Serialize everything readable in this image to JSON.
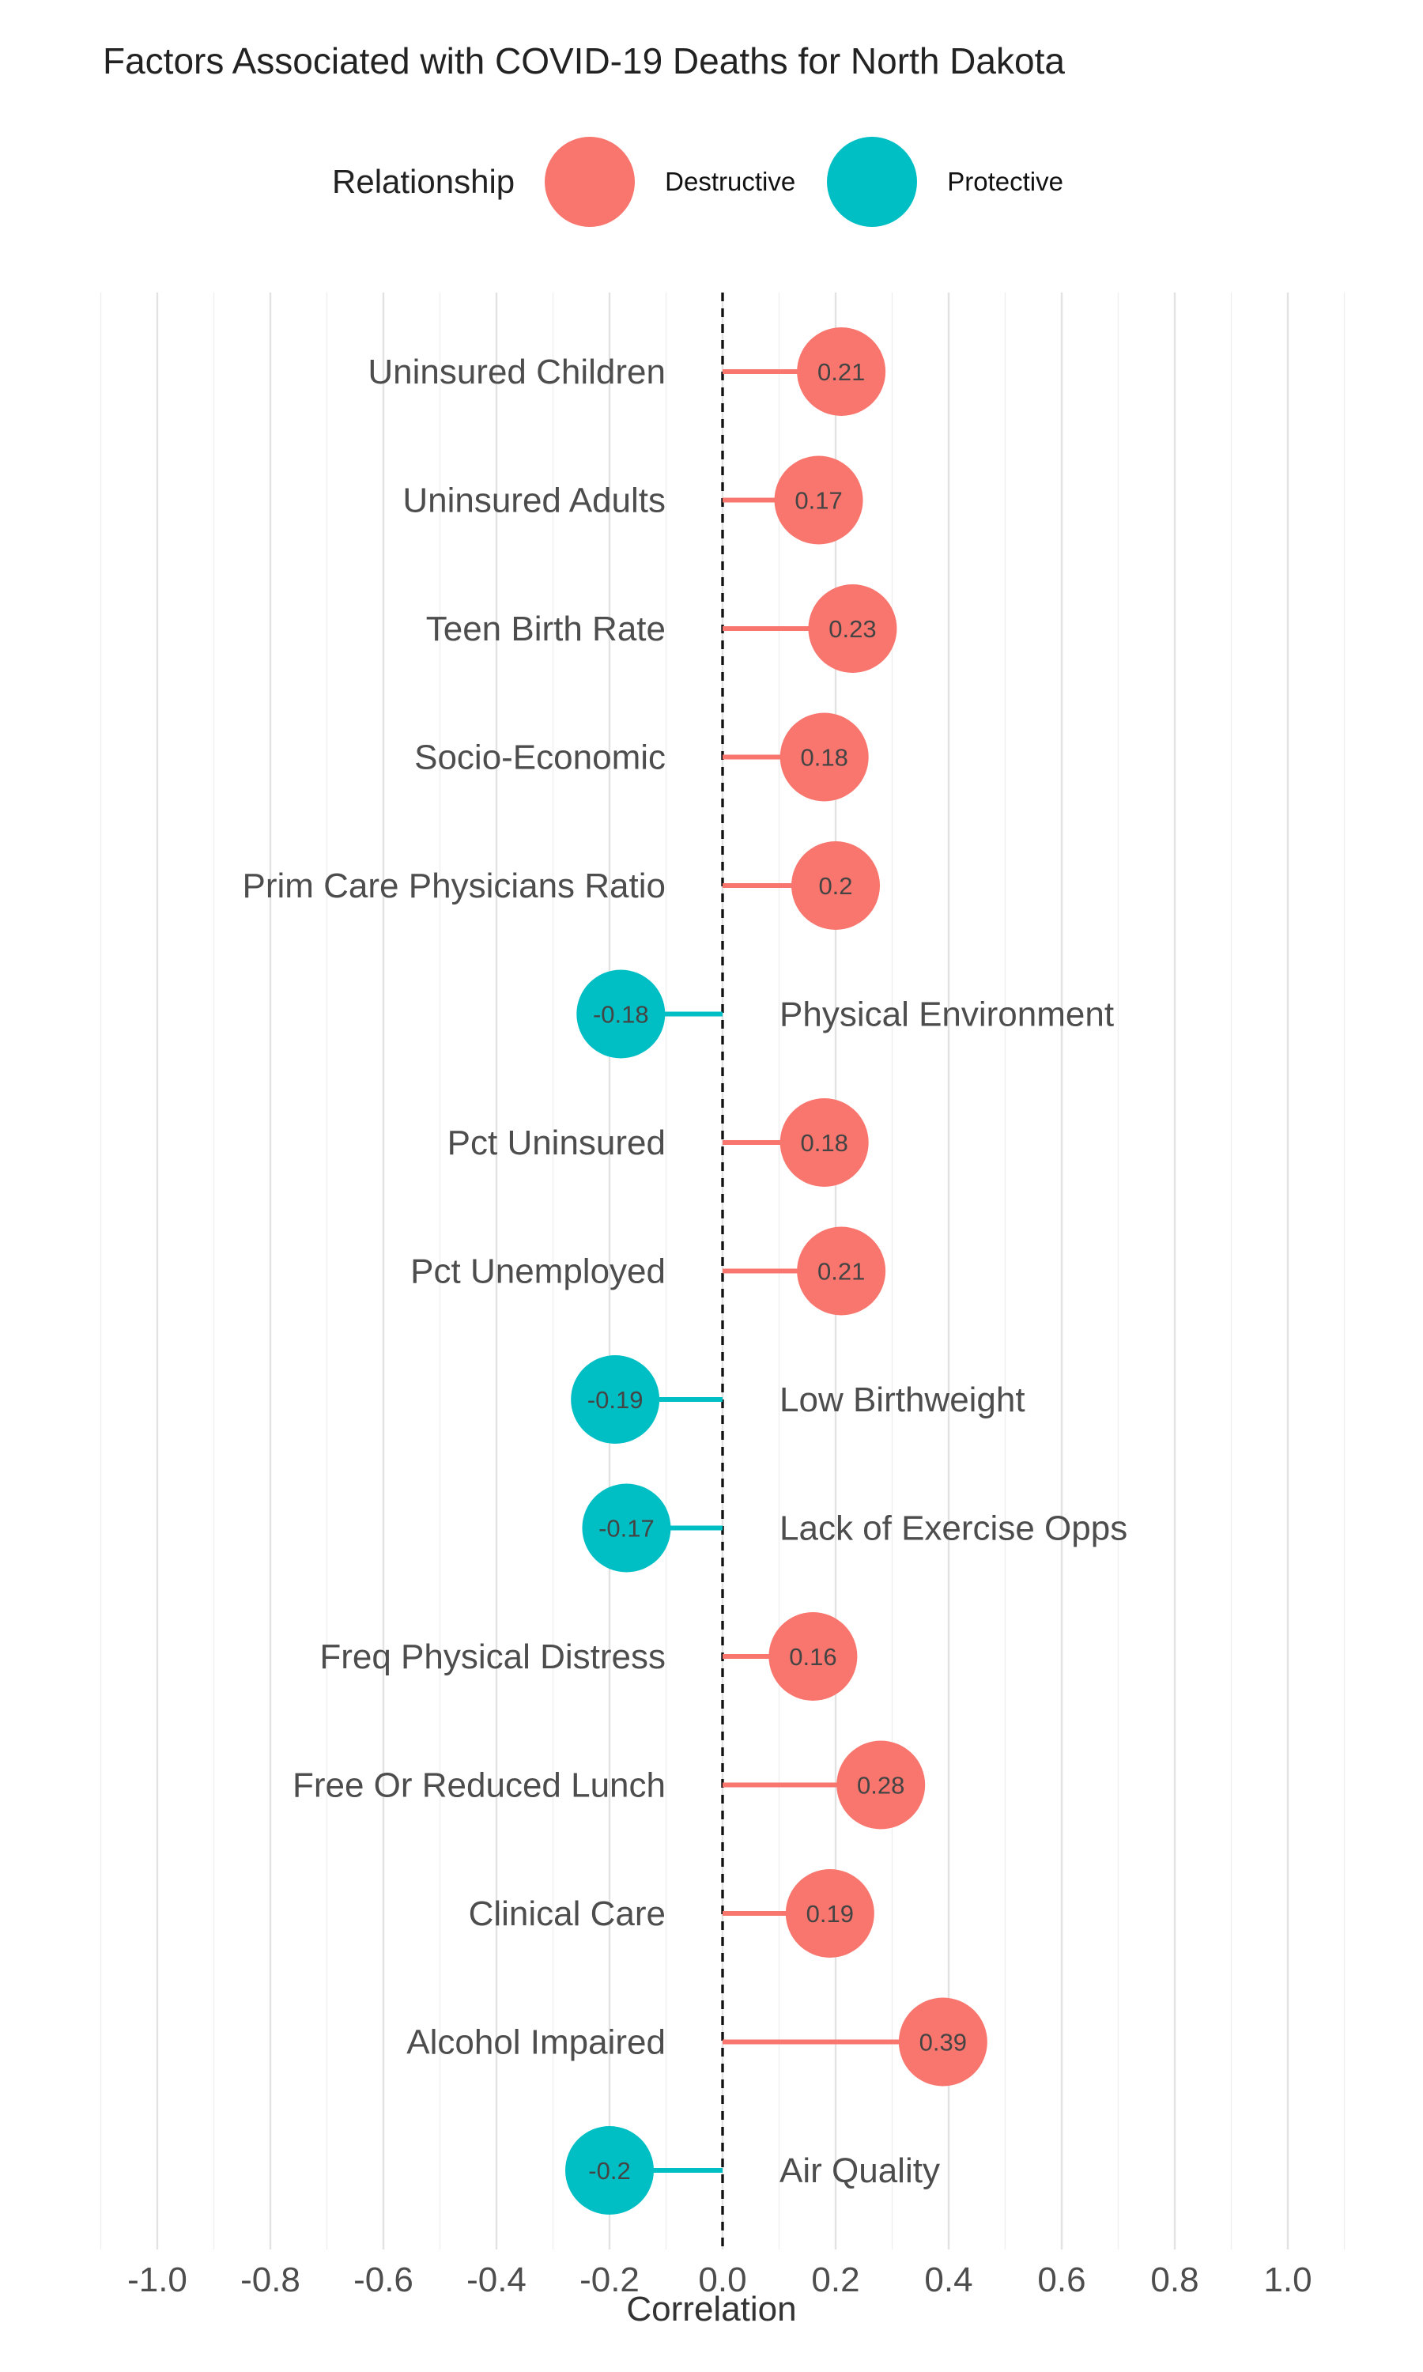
{
  "chart_data": {
    "type": "lollipop",
    "title": "Factors Associated with COVID-19 Deaths for North Dakota",
    "xlabel": "Correlation",
    "ylabel": "",
    "xlim": [
      -1.1,
      1.1
    ],
    "x_ticks": [
      "-1.0",
      "-0.8",
      "-0.6",
      "-0.4",
      "-0.2",
      "0.0",
      "0.2",
      "0.4",
      "0.6",
      "0.8",
      "1.0"
    ],
    "grid": true,
    "legend": {
      "title": "Relationship",
      "position": "top",
      "entries": [
        {
          "label": "Destructive",
          "color": "#F8766D"
        },
        {
          "label": "Protective",
          "color": "#00BFC4"
        }
      ]
    },
    "reference_line": {
      "x": 0,
      "style": "dashed"
    },
    "colors": {
      "Destructive": "#F8766D",
      "Protective": "#00BFC4"
    },
    "points": [
      {
        "category": "Uninsured Children",
        "value": 0.21,
        "label": "0.21",
        "relationship": "Destructive"
      },
      {
        "category": "Uninsured Adults",
        "value": 0.17,
        "label": "0.17",
        "relationship": "Destructive"
      },
      {
        "category": "Teen Birth Rate",
        "value": 0.23,
        "label": "0.23",
        "relationship": "Destructive"
      },
      {
        "category": "Socio-Economic",
        "value": 0.18,
        "label": "0.18",
        "relationship": "Destructive"
      },
      {
        "category": "Prim Care Physicians Ratio",
        "value": 0.2,
        "label": "0.2",
        "relationship": "Destructive"
      },
      {
        "category": "Physical Environment",
        "value": -0.18,
        "label": "-0.18",
        "relationship": "Protective"
      },
      {
        "category": "Pct Uninsured",
        "value": 0.18,
        "label": "0.18",
        "relationship": "Destructive"
      },
      {
        "category": "Pct Unemployed",
        "value": 0.21,
        "label": "0.21",
        "relationship": "Destructive"
      },
      {
        "category": "Low Birthweight",
        "value": -0.19,
        "label": "-0.19",
        "relationship": "Protective"
      },
      {
        "category": "Lack of Exercise Opps",
        "value": -0.17,
        "label": "-0.17",
        "relationship": "Protective"
      },
      {
        "category": "Freq Physical Distress",
        "value": 0.16,
        "label": "0.16",
        "relationship": "Destructive"
      },
      {
        "category": "Free Or Reduced Lunch",
        "value": 0.28,
        "label": "0.28",
        "relationship": "Destructive"
      },
      {
        "category": "Clinical Care",
        "value": 0.19,
        "label": "0.19",
        "relationship": "Destructive"
      },
      {
        "category": "Alcohol Impaired",
        "value": 0.39,
        "label": "0.39",
        "relationship": "Destructive"
      },
      {
        "category": "Air Quality",
        "value": -0.2,
        "label": "-0.2",
        "relationship": "Protective"
      }
    ]
  }
}
